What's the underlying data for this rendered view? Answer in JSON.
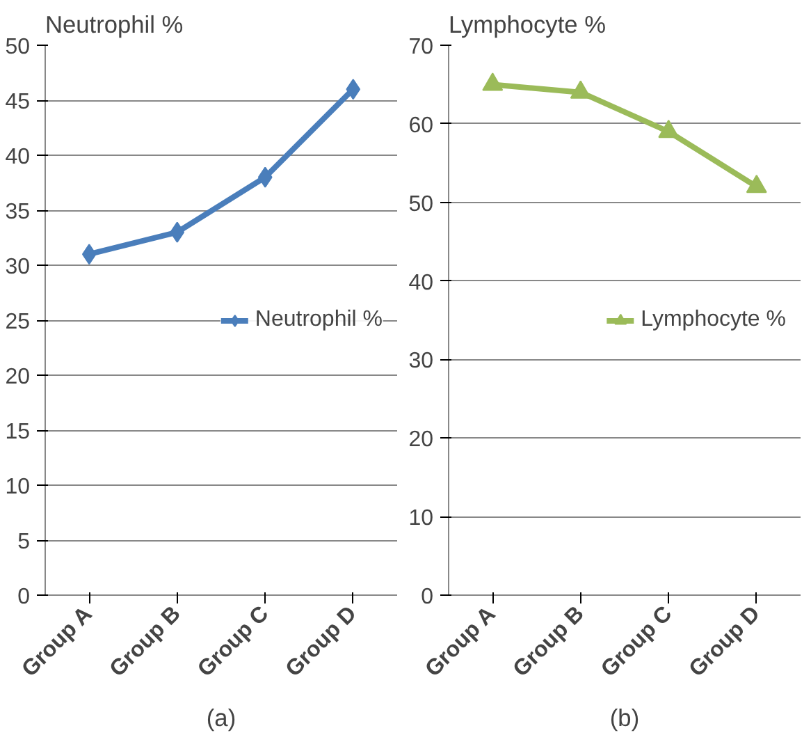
{
  "chart_data": [
    {
      "type": "line",
      "title": "Neutrophil %",
      "categories": [
        "Group A",
        "Group B",
        "Group C",
        "Group D"
      ],
      "series": [
        {
          "name": "Neutrophil %",
          "color": "#4a7ebb",
          "values": [
            31,
            33,
            38,
            46
          ]
        }
      ],
      "ylim": [
        0,
        50
      ],
      "yticks": [
        0,
        5,
        10,
        15,
        20,
        25,
        30,
        35,
        40,
        45,
        50
      ],
      "grid": "y",
      "legend": "right",
      "marker": "diamond",
      "annotations": [
        "(a)"
      ]
    },
    {
      "type": "line",
      "title": "Lymphocyte %",
      "categories": [
        "Group A",
        "Group B",
        "Group C",
        "Group D"
      ],
      "series": [
        {
          "name": "Lymphocyte %",
          "color": "#9bbb59",
          "values": [
            65,
            64,
            59,
            52
          ]
        }
      ],
      "ylim": [
        0,
        70
      ],
      "yticks": [
        0,
        10,
        20,
        30,
        40,
        50,
        60,
        70
      ],
      "grid": "y",
      "legend": "right",
      "marker": "triangle",
      "annotations": [
        "(b)"
      ]
    }
  ]
}
